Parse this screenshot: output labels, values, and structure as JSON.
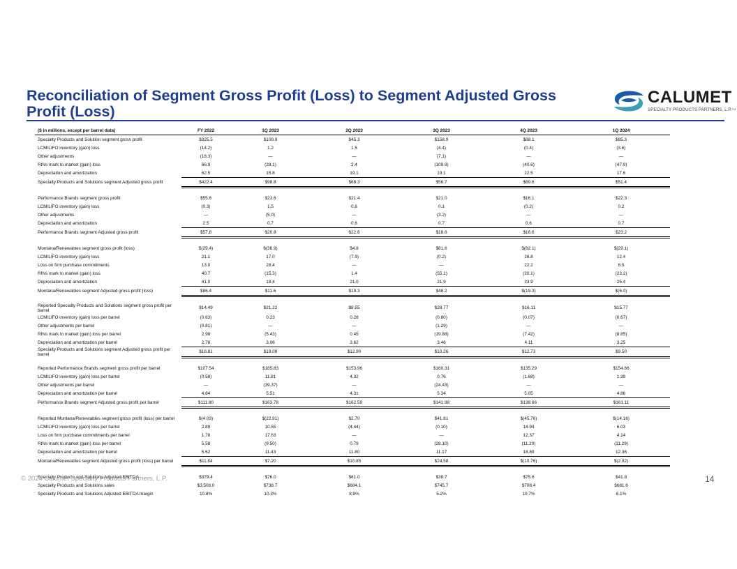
{
  "title": "Reconciliation of Segment Gross Profit (Loss) to Segment Adjusted Gross Profit (Loss)",
  "logo": {
    "name": "CALUMET",
    "tagline": "SPECIALTY PRODUCTS PARTNERS, L.P.",
    "trademark": "TM"
  },
  "colors": {
    "brand_blue": "#1f3d8f",
    "logo_blue": "#1a5aa8",
    "logo_teal": "#3aa0b8"
  },
  "table": {
    "header": [
      "($ in millions, except per barrel data)",
      "FY 2022",
      "1Q 2023",
      "2Q 2023",
      "3Q 2023",
      "4Q 2023",
      "1Q 2024"
    ],
    "sections": [
      {
        "rows": [
          {
            "label": "Specialty Products and Solution segment gross profit",
            "values": [
              "$325.5",
              "$109.9",
              "$45.3",
              "$158.9",
              "$88.1",
              "$85.3"
            ]
          },
          {
            "label": "LCM/LIFO inventory (gain) loss",
            "values": [
              "(14.2)",
              "1.2",
              "1.5",
              "(4.4)",
              "(0.4)",
              "(3.6)"
            ]
          },
          {
            "label": "Other adjustments",
            "values": [
              "(18.3)",
              "—",
              "—",
              "(7.1)",
              "—",
              "—"
            ]
          },
          {
            "label": "RINs mark to market (gain) loss",
            "values": [
              "66.9",
              "(28.1)",
              "2.4",
              "(109.8)",
              "(40.6)",
              "(47.9)"
            ]
          },
          {
            "label": "Depreciation and amortization",
            "values": [
              "62.5",
              "15.8",
              "19.1",
              "19.1",
              "22.5",
              "17.6"
            ]
          },
          {
            "label": "Specialty Products and Solutions segment Adjusted gross profit",
            "values": [
              "$422.4",
              "$98.8",
              "$68.3",
              "$56.7",
              "$69.6",
              "$51.4"
            ],
            "total": true
          }
        ]
      },
      {
        "rows": [
          {
            "label": "Performance Brands segment gross profit",
            "values": [
              "$55.6",
              "$23.6",
              "$21.4",
              "$21.0",
              "$16.1",
              "$22.3"
            ]
          },
          {
            "label": "LCM/LIFO inventory (gain) loss",
            "values": [
              "(0.3)",
              "1.5",
              "0.6",
              "0.1",
              "(0.2)",
              "0.2"
            ]
          },
          {
            "label": "Other adjustments",
            "values": [
              "—",
              "(5.0)",
              "—",
              "(3.2)",
              "—",
              "—"
            ]
          },
          {
            "label": "Depreciation and amortization",
            "values": [
              "2.5",
              "0.7",
              "0.6",
              "0.7",
              "0.6",
              "0.7"
            ]
          },
          {
            "label": "Performance Brands segment Adjusted gross profit",
            "values": [
              "$57.8",
              "$20.8",
              "$22.6",
              "$18.6",
              "$16.6",
              "$23.2"
            ],
            "total": true
          }
        ]
      },
      {
        "rows": [
          {
            "label": "Montana/Renewables segment gross profit (loss)",
            "values": [
              "$(29.4)",
              "$(36.9)",
              "$4.8",
              "$81.6",
              "$(82.1)",
              "$(29.1)"
            ]
          },
          {
            "label": "LCM/LIFO inventory (gain) loss",
            "values": [
              "21.1",
              "17.0",
              "(7.9)",
              "(0.2)",
              "26.8",
              "12.4"
            ]
          },
          {
            "label": "Loss on firm purchase commitments",
            "values": [
              "13.0",
              "28.4",
              "—",
              "—",
              "22.2",
              "8.5"
            ]
          },
          {
            "label": "RINs mark to market (gain) loss",
            "values": [
              "40.7",
              "(15.3)",
              "1.4",
              "(55.1)",
              "(20.1)",
              "(23.2)"
            ]
          },
          {
            "label": "Depreciation and amortization",
            "values": [
              "41.0",
              "18.4",
              "21.0",
              "21.9",
              "33.9",
              "25.4"
            ]
          },
          {
            "label": "Montana/Renewables segment Adjusted gross profit (loss)",
            "values": [
              "$86.4",
              "$11.6",
              "$19.3",
              "$48.2",
              "$(19.3)",
              "$(6.0)"
            ],
            "total": true
          }
        ]
      },
      {
        "rows": [
          {
            "label": "Reported Specialty Products and Solutions segment gross profit per barrel",
            "values": [
              "$14.49",
              "$21.22",
              "$8.55",
              "$28.77",
              "$16.11",
              "$15.77"
            ],
            "wrap": true
          },
          {
            "label": "LCM/LIFO inventory (gain) loss per barrel",
            "values": [
              "(0.63)",
              "0.23",
              "0.28",
              "(0.80)",
              "(0.07)",
              "(0.67)"
            ]
          },
          {
            "label": "Other adjustments per barrel",
            "values": [
              "(0.81)",
              "—",
              "—",
              "(1.29)",
              "—",
              "—"
            ]
          },
          {
            "label": "RINs mark to market (gain) loss per barrel",
            "values": [
              "2.98",
              "(5.43)",
              "0.45",
              "(19.88)",
              "(7.42)",
              "(8.85)"
            ]
          },
          {
            "label": "Depreciation and amortization per barrel",
            "values": [
              "2.78",
              "3.06",
              "3.62",
              "3.46",
              "4.11",
              "3.25"
            ]
          },
          {
            "label": "Specialty Products and Solutions segment Adjusted gross profit per barrel",
            "values": [
              "$18.81",
              "$19.08",
              "$12.90",
              "$10.26",
              "$12.73",
              "$9.50"
            ],
            "total": true,
            "wrap": true
          }
        ]
      },
      {
        "rows": [
          {
            "label": "Reported Performance Brands segment gross profit per barrel",
            "values": [
              "$107.54",
              "$185.83",
              "$153.96",
              "$160.31",
              "$135.29",
              "$154.86"
            ]
          },
          {
            "label": "LCM/LIFO inventory (gain) loss per barrel",
            "values": [
              "(0.58)",
              "11.81",
              "4.32",
              "0.76",
              "(1.68)",
              "1.39"
            ]
          },
          {
            "label": "Other adjustments per barrel",
            "values": [
              "—",
              "(39.37)",
              "—",
              "(24.43)",
              "—",
              "—"
            ]
          },
          {
            "label": "Depreciation and amortization per barrel",
            "values": [
              "4.84",
              "5.51",
              "4.31",
              "5.34",
              "5.05",
              "4.86"
            ]
          },
          {
            "label": "Performance Brands segment Adjusted gross profit per barrel",
            "values": [
              "$111.80",
              "$163.78",
              "$162.59",
              "$141.98",
              "$138.66",
              "$161.11"
            ],
            "total": true
          }
        ]
      },
      {
        "rows": [
          {
            "label": "Reported Montana/Renewables segment gross profit (loss) per barrel",
            "values": [
              "$(4.03)",
              "$(22.91)",
              "$2.70",
              "$41.61",
              "$(45.76)",
              "$(14.16)"
            ]
          },
          {
            "label": "LCM/LIFO inventory (gain) loss per barrel",
            "values": [
              "2.89",
              "10.55",
              "(4.44)",
              "(0.10)",
              "14.94",
              "6.03"
            ]
          },
          {
            "label": "Loss on firm purchase commitments per barrel",
            "values": [
              "1.78",
              "17.63",
              "—",
              "—",
              "12.37",
              "4.14"
            ]
          },
          {
            "label": "RINs mark to market (gain) loss per barrel",
            "values": [
              "5.58",
              "(9.50)",
              "0.79",
              "(28.10)",
              "(11.20)",
              "(11.29)"
            ]
          },
          {
            "label": "Depreciation and amortization per barrel",
            "values": [
              "5.62",
              "11.43",
              "11.80",
              "11.17",
              "18.89",
              "12.36"
            ]
          },
          {
            "label": "Montana/Renewables segment Adjusted gross profit (loss) per barrel",
            "values": [
              "$11.84",
              "$7.20",
              "$10.85",
              "$24.58",
              "$(10.76)",
              "$(2.92)"
            ],
            "total": true
          }
        ]
      },
      {
        "rows": [
          {
            "label": "Specialty Products and Solutions Adjusted EBITDA",
            "values": [
              "$379.4",
              "$76.0",
              "$61.0",
              "$38.7",
              "$75.6",
              "$41.8"
            ]
          },
          {
            "label": "Specialty Products and Solutions sales",
            "values": [
              "$3,508.0",
              "$738.7",
              "$684.1",
              "$745.7",
              "$708.4",
              "$681.6"
            ]
          },
          {
            "label": "Specialty Products and Solutions Adjusted EBITDA margin",
            "values": [
              "10.8%",
              "10.3%",
              "8.9%",
              "5.2%",
              "10.7%",
              "6.1%"
            ]
          }
        ]
      }
    ]
  },
  "footer": {
    "copyright": "© 2024 Calumet Specialty Products Partners, L.P.",
    "page_number": "14"
  }
}
